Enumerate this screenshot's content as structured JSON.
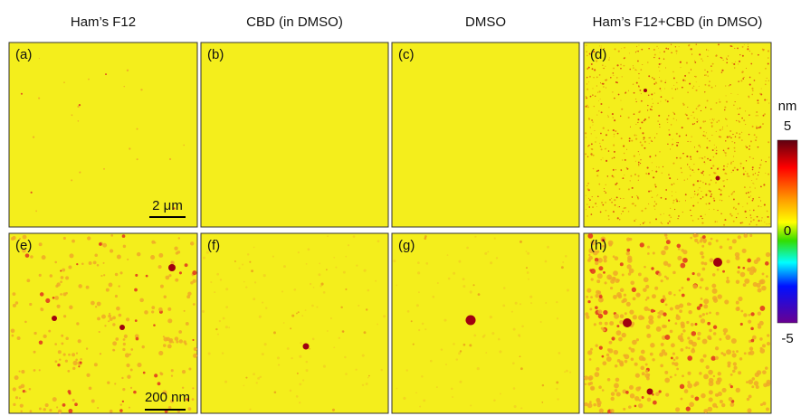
{
  "columns": [
    "Ham’s F12",
    "CBD (in DMSO)",
    "DMSO",
    "Ham’s F12+CBD (in DMSO)"
  ],
  "panels": [
    "(a)",
    "(b)",
    "(c)",
    "(d)",
    "(e)",
    "(f)",
    "(g)",
    "(h)"
  ],
  "scale_bars": [
    "2 μm",
    "200 nm"
  ],
  "colorbar": {
    "unit": "nm",
    "ticks": [
      5,
      0,
      -5
    ]
  }
}
